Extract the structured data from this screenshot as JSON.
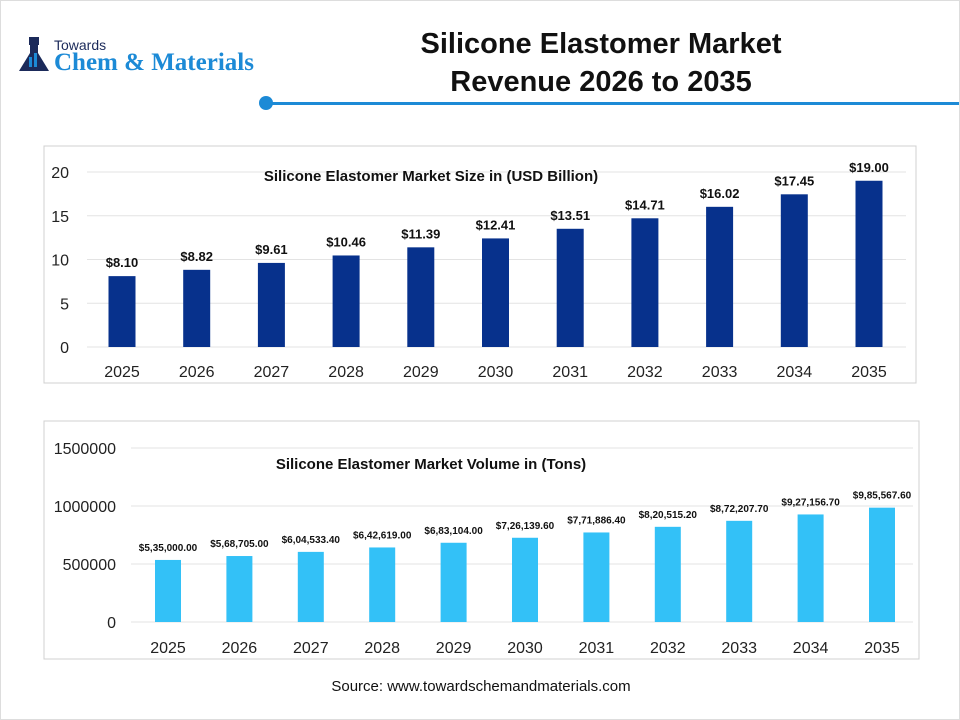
{
  "logo": {
    "line1": "Towards",
    "line2": "Chem & Materials"
  },
  "title_line1": "Silicone Elastomer Market",
  "title_line2": "Revenue 2026 to 2035",
  "source": "Source: www.towardschemandmaterials.com",
  "colors": {
    "accent": "#1c8ad6",
    "bar1": "#07318c",
    "bar2": "#33c1f7"
  },
  "chart_data": [
    {
      "type": "bar",
      "title": "Silicone Elastomer Market Size in (USD Billion)",
      "categories": [
        "2025",
        "2026",
        "2027",
        "2028",
        "2029",
        "2030",
        "2031",
        "2032",
        "2033",
        "2034",
        "2035"
      ],
      "values": [
        8.1,
        8.82,
        9.61,
        10.46,
        11.39,
        12.41,
        13.51,
        14.71,
        16.02,
        17.45,
        19.0
      ],
      "labels": [
        "$8.10",
        "$8.82",
        "$9.61",
        "$10.46",
        "$11.39",
        "$12.41",
        "$13.51",
        "$14.71",
        "$16.02",
        "$17.45",
        "$19.00"
      ],
      "yticks": [
        "0",
        "5",
        "10",
        "15",
        "20"
      ],
      "ylim": [
        0,
        20
      ],
      "grid": true
    },
    {
      "type": "bar",
      "title": "Silicone Elastomer Market Volume in (Tons)",
      "categories": [
        "2025",
        "2026",
        "2027",
        "2028",
        "2029",
        "2030",
        "2031",
        "2032",
        "2033",
        "2034",
        "2035"
      ],
      "values": [
        535000,
        568705,
        604533.4,
        642619,
        683104,
        726139.6,
        771886.4,
        820515.2,
        872207.7,
        927156.7,
        985567.6
      ],
      "labels": [
        "$5,35,000.00",
        "$5,68,705.00",
        "$6,04,533.40",
        "$6,42,619.00",
        "$6,83,104.00",
        "$7,26,139.60",
        "$7,71,886.40",
        "$8,20,515.20",
        "$8,72,207.70",
        "$9,27,156.70",
        "$9,85,567.60"
      ],
      "yticks": [
        "0",
        "500000",
        "1000000",
        "1500000"
      ],
      "ylim": [
        0,
        1500000
      ],
      "grid": true
    }
  ]
}
